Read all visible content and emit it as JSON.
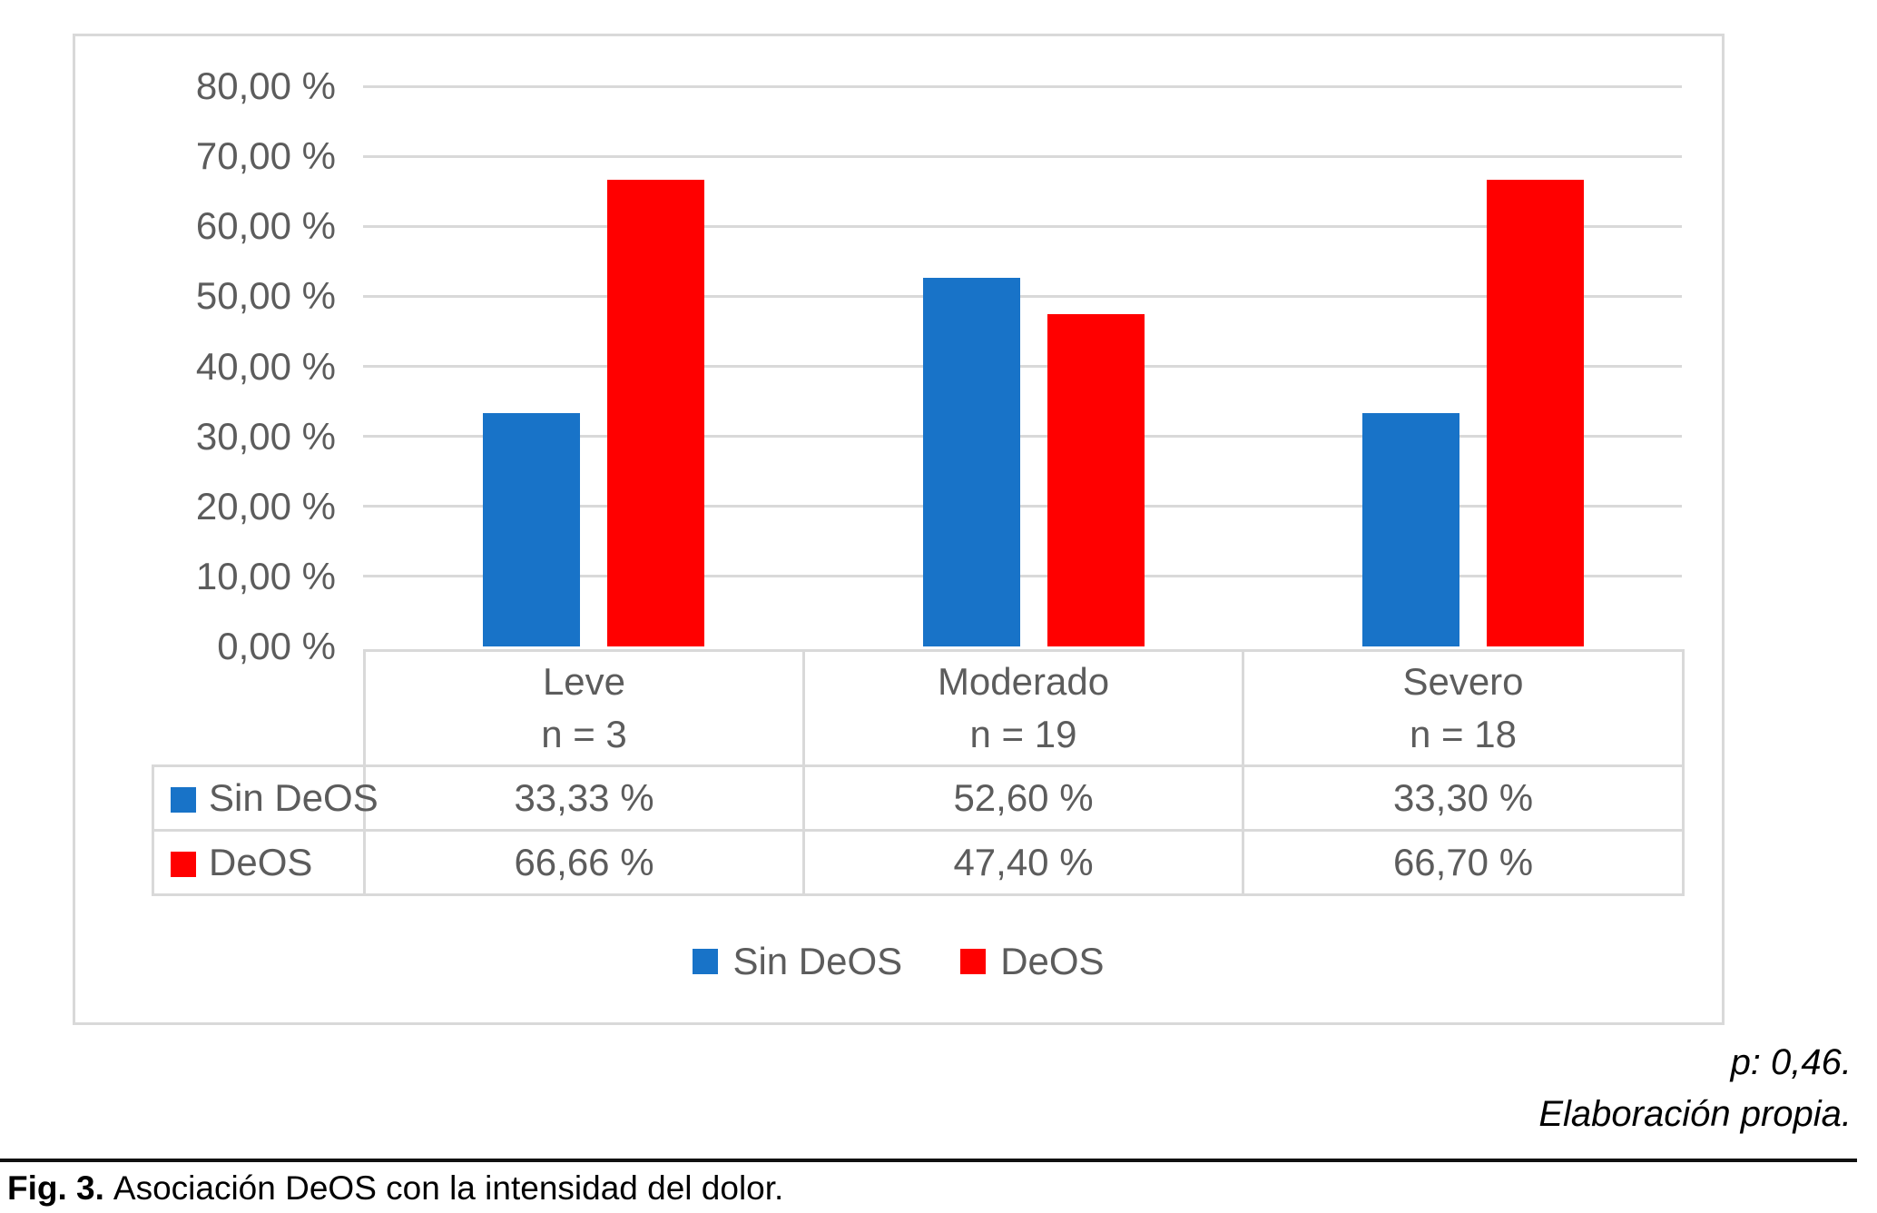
{
  "chart_data": {
    "type": "bar",
    "title": "",
    "categories": [
      "Leve",
      "Moderado",
      "Severo"
    ],
    "category_n": [
      "n = 3",
      "n = 19",
      "n = 18"
    ],
    "series": [
      {
        "name": "Sin DeOS",
        "color": "#1873c8",
        "values": [
          33.33,
          52.6,
          33.3
        ]
      },
      {
        "name": "DeOS",
        "color": "#ff0000",
        "values": [
          66.66,
          47.4,
          66.7
        ]
      }
    ],
    "ylim": [
      0,
      80
    ],
    "ytick_step": 10,
    "ytick_labels": [
      "80,00 %",
      "70,00 %",
      "60,00 %",
      "50,00 %",
      "40,00 %",
      "30,00 %",
      "20,00 %",
      "10,00 %",
      "0,00 %"
    ],
    "grid": true,
    "legend_position": "bottom"
  },
  "table": {
    "row_labels": [
      "Sin DeOS",
      "DeOS"
    ],
    "values": [
      [
        "33,33 %",
        "52,60 %",
        "33,30 %"
      ],
      [
        "66,66 %",
        "47,40 %",
        "66,70 %"
      ]
    ]
  },
  "legend": {
    "items": [
      {
        "label": "Sin DeOS",
        "color": "#1873c8"
      },
      {
        "label": "DeOS",
        "color": "#ff0000"
      }
    ]
  },
  "annotations": {
    "p_value": "p: 0,46.",
    "source": "Elaboración propia."
  },
  "caption": {
    "label": "Fig. 3.",
    "text": "Asociación DeOS con la intensidad del dolor."
  },
  "colors": {
    "series_blue": "#1873c8",
    "series_red": "#ff0000",
    "grid": "#d9d9d9",
    "axis_text": "#5c5c5c"
  }
}
